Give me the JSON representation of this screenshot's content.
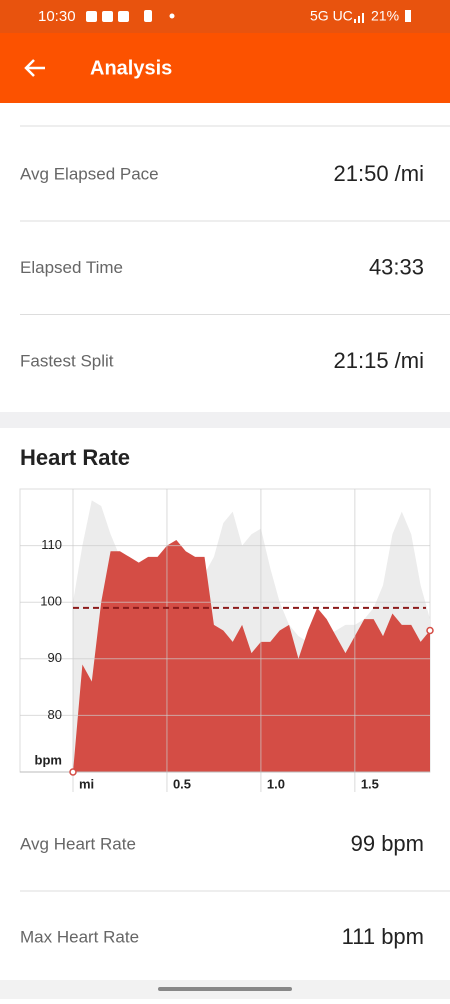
{
  "status_bar": {
    "time": "10:30",
    "network": "5G UC",
    "battery": "21%"
  },
  "header": {
    "title": "Analysis"
  },
  "stats": [
    {
      "label": "Avg Elapsed Pace",
      "value": "21:50 /mi"
    },
    {
      "label": "Elapsed Time",
      "value": "43:33"
    },
    {
      "label": "Fastest Split",
      "value": "21:15 /mi"
    }
  ],
  "chart_data": {
    "type": "area",
    "title": "Heart Rate",
    "x": [
      0,
      0.05,
      0.1,
      0.15,
      0.2,
      0.25,
      0.3,
      0.35,
      0.4,
      0.45,
      0.5,
      0.55,
      0.6,
      0.65,
      0.7,
      0.75,
      0.8,
      0.85,
      0.9,
      0.95,
      1.0,
      1.05,
      1.1,
      1.15,
      1.2,
      1.25,
      1.3,
      1.35,
      1.4,
      1.45,
      1.5,
      1.55,
      1.6,
      1.65,
      1.7,
      1.75,
      1.8,
      1.85,
      1.9
    ],
    "xlim": [
      0,
      1.9
    ],
    "xticks": [
      {
        "value": 0,
        "label": "mi"
      },
      0.5,
      {
        "value": 1,
        "label": "1.0"
      },
      1.5
    ],
    "ylim": [
      70,
      120
    ],
    "yticks": [
      80,
      90,
      100,
      110
    ],
    "y_label": "bpm",
    "grid": true,
    "series": [
      {
        "color": "#ececec",
        "values": [
          100,
          110,
          118,
          117,
          112,
          108,
          105,
          100,
          96,
          95,
          97,
          98,
          100,
          102,
          105,
          108,
          114,
          116,
          110,
          112,
          113,
          106,
          100,
          96,
          94,
          93,
          95,
          94,
          95,
          96,
          96,
          97,
          99,
          103,
          112,
          116,
          112,
          103,
          97
        ]
      },
      {
        "color": "#d44d45",
        "values": [
          70,
          89,
          86,
          100,
          109,
          109,
          108,
          107,
          108,
          108,
          110,
          111,
          109,
          108,
          108,
          96,
          95,
          93,
          96,
          91,
          93,
          93,
          95,
          96,
          90,
          95,
          99,
          97,
          94,
          91,
          94,
          97,
          97,
          94,
          98,
          96,
          96,
          93,
          95
        ]
      }
    ],
    "average": {
      "value": 99,
      "color": "#8b1a1a"
    }
  },
  "hr_stats": [
    {
      "label": "Avg Heart Rate",
      "value": "99 bpm"
    },
    {
      "label": "Max Heart Rate",
      "value": "111 bpm"
    }
  ]
}
